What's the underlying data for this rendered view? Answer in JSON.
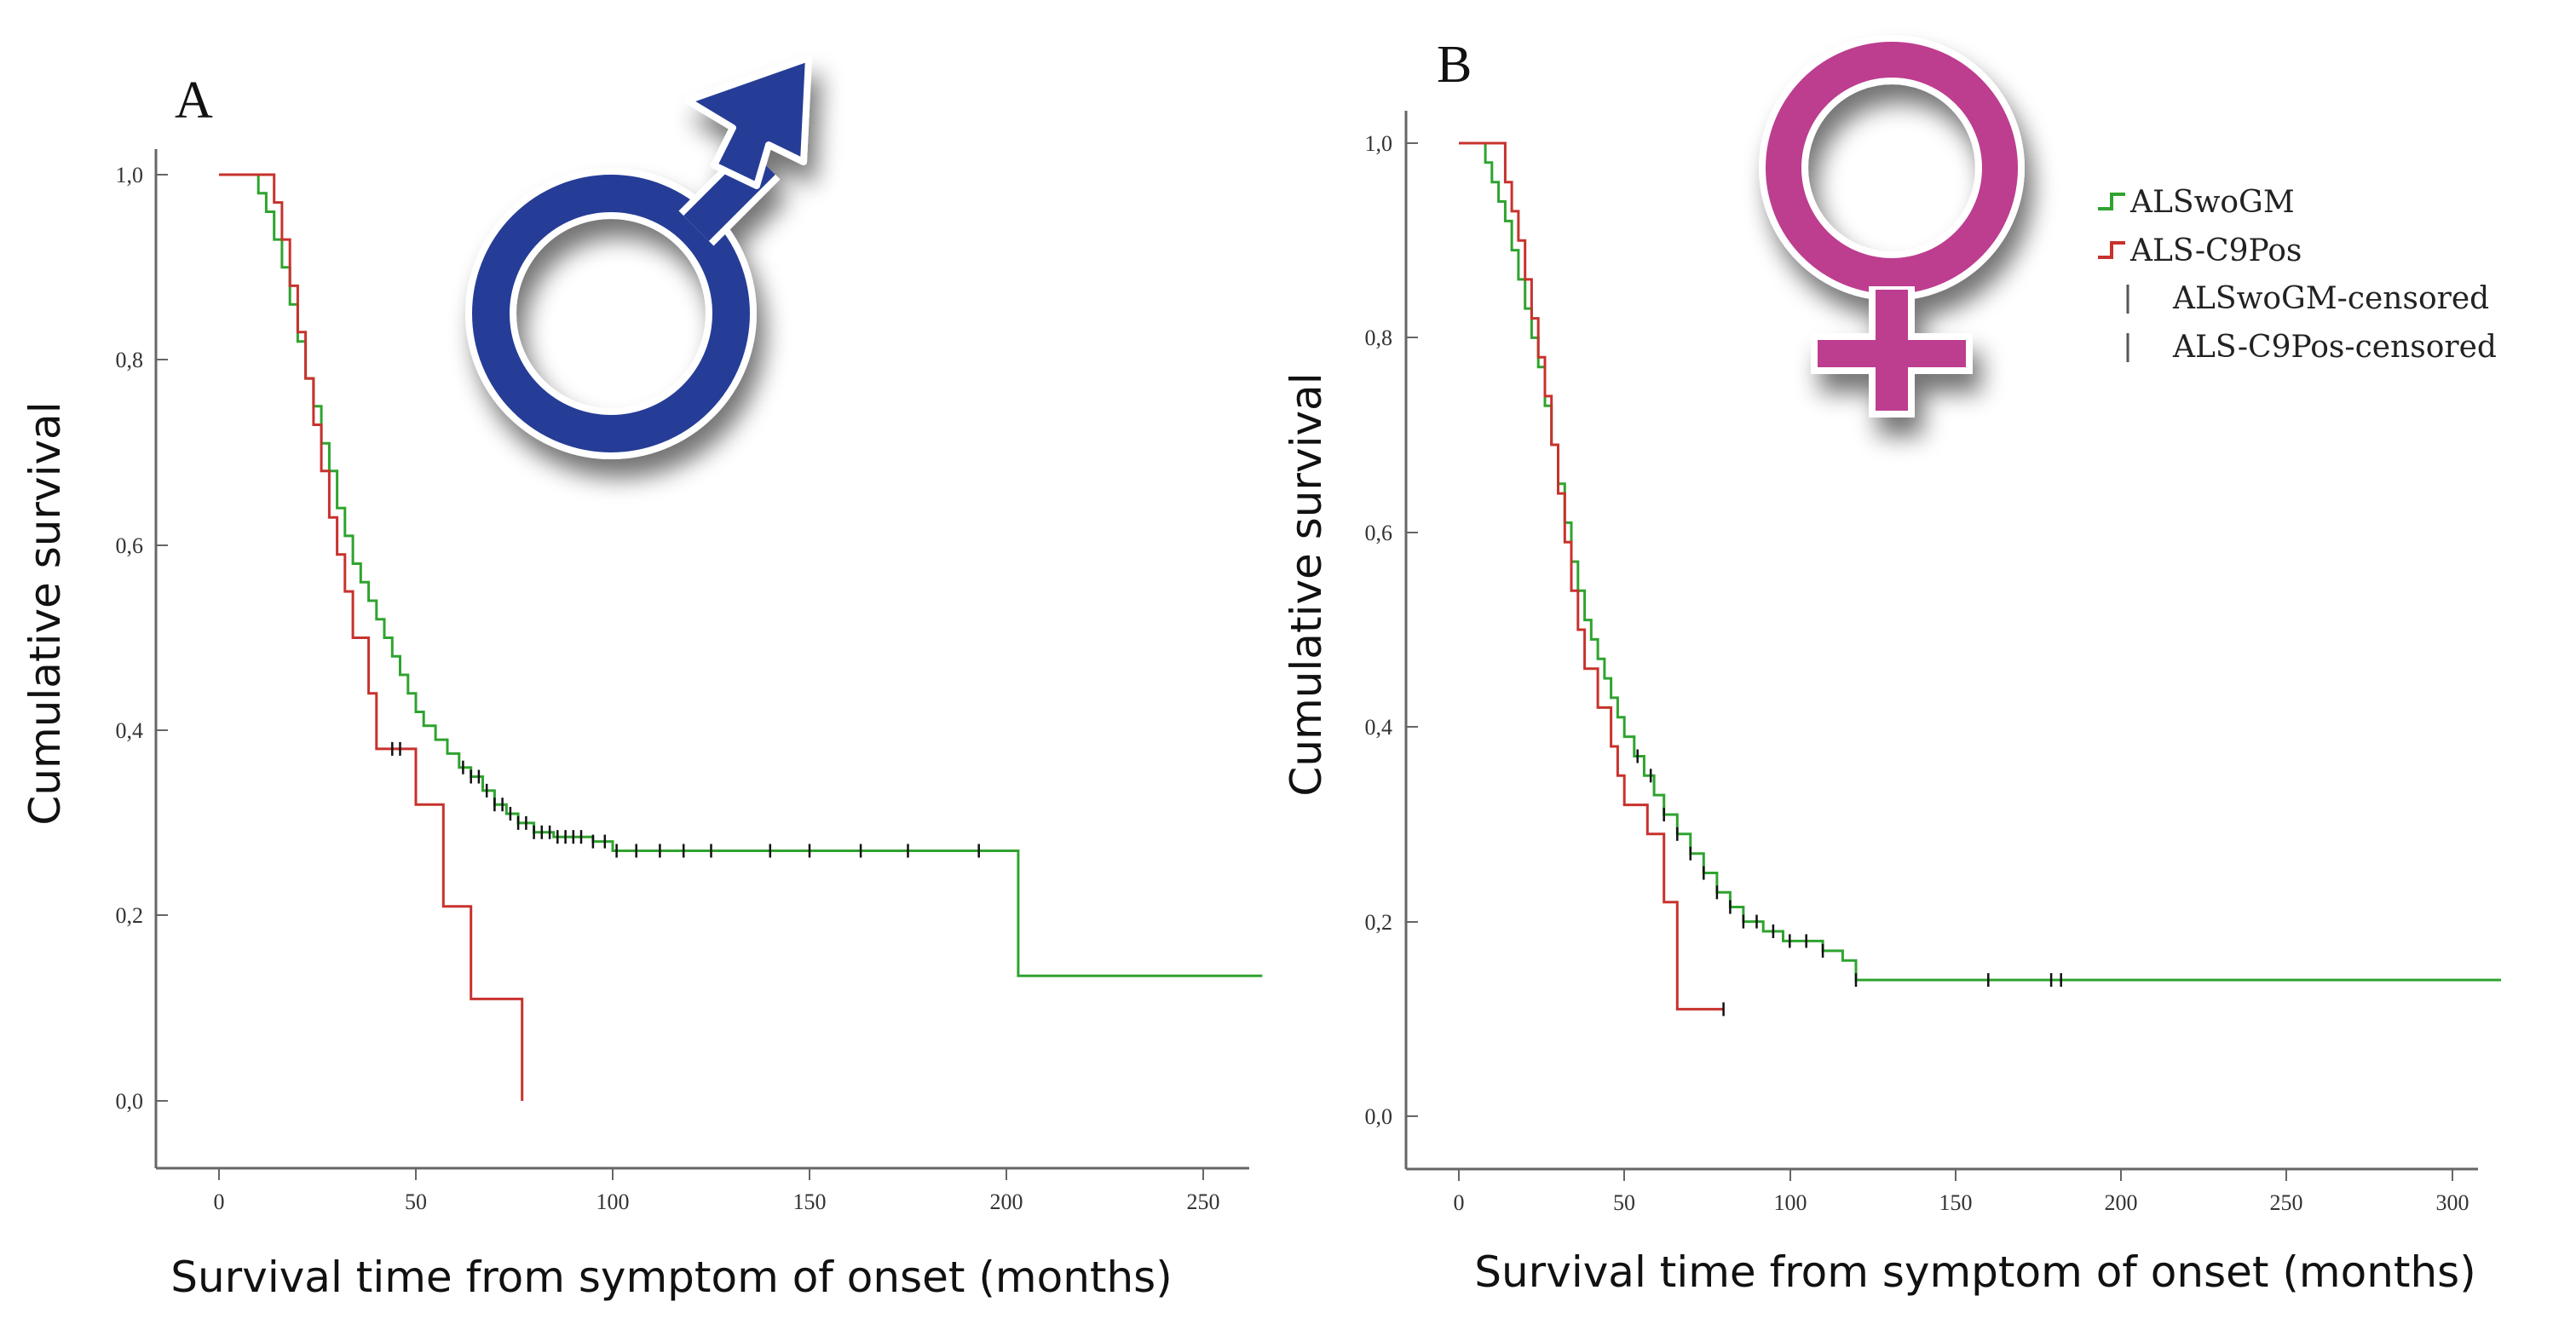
{
  "colors": {
    "alswogm": "#2fa32f",
    "alsc9pos": "#c8322d",
    "censor": "#111111",
    "axis": "#666666",
    "male_symbol": "#263d97",
    "female_symbol": "#bd3c8f"
  },
  "legend": {
    "items": [
      "ALSwoGM",
      "ALS-C9Pos",
      "ALSwoGM-censored",
      "ALS-C9Pos-censored"
    ]
  },
  "symbols": {
    "panel_a": "male-symbol-icon",
    "panel_b": "female-symbol-icon"
  },
  "chart_data": [
    {
      "type": "line",
      "subtype": "kaplan-meier step",
      "panel": "A",
      "xlabel": "Survival time from symptom of onset (months)",
      "ylabel": "Cumulative survival",
      "xlim": [
        -15,
        265
      ],
      "ylim": [
        -0.04,
        1.04
      ],
      "x_ticks": [
        0,
        50,
        100,
        150,
        200,
        250
      ],
      "x_tick_labels": [
        "0",
        "50",
        "100",
        "150",
        "200",
        "250"
      ],
      "y_ticks": [
        0,
        0.2,
        0.4,
        0.6,
        0.8,
        1.0
      ],
      "y_tick_labels": [
        "0,0",
        "0,2",
        "0,4",
        "0,6",
        "0,8",
        "1,0"
      ],
      "series": [
        {
          "name": "ALSwoGM",
          "points": [
            [
              0,
              1.0
            ],
            [
              8,
              1.0
            ],
            [
              10,
              0.98
            ],
            [
              12,
              0.96
            ],
            [
              14,
              0.93
            ],
            [
              16,
              0.9
            ],
            [
              18,
              0.86
            ],
            [
              20,
              0.82
            ],
            [
              22,
              0.78
            ],
            [
              24,
              0.75
            ],
            [
              26,
              0.71
            ],
            [
              28,
              0.68
            ],
            [
              30,
              0.64
            ],
            [
              32,
              0.61
            ],
            [
              34,
              0.58
            ],
            [
              36,
              0.56
            ],
            [
              38,
              0.54
            ],
            [
              40,
              0.52
            ],
            [
              42,
              0.5
            ],
            [
              44,
              0.48
            ],
            [
              46,
              0.46
            ],
            [
              48,
              0.44
            ],
            [
              50,
              0.42
            ],
            [
              52,
              0.405
            ],
            [
              55,
              0.39
            ],
            [
              58,
              0.375
            ],
            [
              61,
              0.36
            ],
            [
              64,
              0.35
            ],
            [
              67,
              0.335
            ],
            [
              70,
              0.32
            ],
            [
              73,
              0.31
            ],
            [
              76,
              0.3
            ],
            [
              80,
              0.29
            ],
            [
              85,
              0.285
            ],
            [
              95,
              0.28
            ],
            [
              100,
              0.27
            ],
            [
              203,
              0.27
            ],
            [
              203,
              0.135
            ],
            [
              265,
              0.135
            ]
          ],
          "censored": [
            62,
            64,
            66,
            68,
            70,
            72,
            74,
            76,
            78,
            80,
            82,
            84,
            86,
            88,
            90,
            92,
            95,
            98,
            101,
            106,
            112,
            118,
            125,
            140,
            150,
            163,
            175,
            193
          ]
        },
        {
          "name": "ALS-C9Pos",
          "points": [
            [
              0,
              1.0
            ],
            [
              12,
              1.0
            ],
            [
              14,
              0.97
            ],
            [
              16,
              0.93
            ],
            [
              18,
              0.88
            ],
            [
              20,
              0.83
            ],
            [
              22,
              0.78
            ],
            [
              24,
              0.73
            ],
            [
              26,
              0.68
            ],
            [
              28,
              0.63
            ],
            [
              30,
              0.59
            ],
            [
              32,
              0.55
            ],
            [
              34,
              0.5
            ],
            [
              38,
              0.44
            ],
            [
              40,
              0.38
            ],
            [
              48,
              0.38
            ],
            [
              50,
              0.32
            ],
            [
              56,
              0.32
            ],
            [
              57,
              0.21
            ],
            [
              63,
              0.21
            ],
            [
              64,
              0.11
            ],
            [
              77,
              0.11
            ],
            [
              77,
              0.0
            ]
          ],
          "censored": [
            44,
            46
          ]
        }
      ]
    },
    {
      "type": "line",
      "subtype": "kaplan-meier step",
      "panel": "B",
      "xlabel": "Survival time from symptom of onset (months)",
      "ylabel": "Cumulative survival",
      "xlim": [
        -15,
        315
      ],
      "ylim": [
        -0.04,
        1.04
      ],
      "x_ticks": [
        0,
        50,
        100,
        150,
        200,
        250,
        300
      ],
      "x_tick_labels": [
        "0",
        "50",
        "100",
        "150",
        "200",
        "250",
        "300"
      ],
      "y_ticks": [
        0,
        0.2,
        0.4,
        0.6,
        0.8,
        1.0
      ],
      "y_tick_labels": [
        "0,0",
        "0,2",
        "0,4",
        "0,6",
        "0,8",
        "1,0"
      ],
      "series": [
        {
          "name": "ALSwoGM",
          "points": [
            [
              0,
              1.0
            ],
            [
              5,
              1.0
            ],
            [
              8,
              0.98
            ],
            [
              10,
              0.96
            ],
            [
              12,
              0.94
            ],
            [
              14,
              0.92
            ],
            [
              16,
              0.89
            ],
            [
              18,
              0.86
            ],
            [
              20,
              0.83
            ],
            [
              22,
              0.8
            ],
            [
              24,
              0.77
            ],
            [
              26,
              0.73
            ],
            [
              28,
              0.69
            ],
            [
              30,
              0.65
            ],
            [
              32,
              0.61
            ],
            [
              34,
              0.57
            ],
            [
              36,
              0.54
            ],
            [
              38,
              0.51
            ],
            [
              40,
              0.49
            ],
            [
              42,
              0.47
            ],
            [
              44,
              0.45
            ],
            [
              46,
              0.43
            ],
            [
              48,
              0.41
            ],
            [
              50,
              0.39
            ],
            [
              53,
              0.37
            ],
            [
              56,
              0.35
            ],
            [
              59,
              0.33
            ],
            [
              62,
              0.31
            ],
            [
              66,
              0.29
            ],
            [
              70,
              0.27
            ],
            [
              74,
              0.25
            ],
            [
              78,
              0.23
            ],
            [
              82,
              0.215
            ],
            [
              86,
              0.2
            ],
            [
              92,
              0.19
            ],
            [
              98,
              0.18
            ],
            [
              110,
              0.17
            ],
            [
              116,
              0.16
            ],
            [
              120,
              0.14
            ],
            [
              315,
              0.14
            ]
          ],
          "censored": [
            54,
            58,
            62,
            66,
            70,
            74,
            78,
            82,
            86,
            90,
            95,
            100,
            105,
            110,
            120,
            160,
            179,
            182
          ]
        },
        {
          "name": "ALS-C9Pos",
          "points": [
            [
              0,
              1.0
            ],
            [
              12,
              1.0
            ],
            [
              14,
              0.96
            ],
            [
              16,
              0.93
            ],
            [
              18,
              0.9
            ],
            [
              20,
              0.86
            ],
            [
              22,
              0.82
            ],
            [
              24,
              0.78
            ],
            [
              26,
              0.74
            ],
            [
              28,
              0.69
            ],
            [
              30,
              0.64
            ],
            [
              32,
              0.59
            ],
            [
              34,
              0.54
            ],
            [
              36,
              0.5
            ],
            [
              38,
              0.46
            ],
            [
              42,
              0.42
            ],
            [
              46,
              0.38
            ],
            [
              48,
              0.35
            ],
            [
              50,
              0.32
            ],
            [
              56,
              0.32
            ],
            [
              57,
              0.29
            ],
            [
              61,
              0.29
            ],
            [
              62,
              0.22
            ],
            [
              65,
              0.22
            ],
            [
              66,
              0.11
            ],
            [
              80,
              0.11
            ]
          ],
          "censored": [
            80
          ]
        }
      ]
    }
  ],
  "panels": [
    {
      "letter": "A",
      "ylabel": "Cumulative survival",
      "xlabel": "Survival time from symptom of onset (months)",
      "x_tick_labels": [
        "0",
        "50",
        "100",
        "150",
        "200",
        "250"
      ],
      "y_tick_labels": [
        "0,0",
        "0,2",
        "0,4",
        "0,6",
        "0,8",
        "1,0"
      ]
    },
    {
      "letter": "B",
      "ylabel": "Cumulative survival",
      "xlabel": "Survival time from symptom of onset (months)",
      "x_tick_labels": [
        "0",
        "50",
        "100",
        "150",
        "200",
        "250",
        "300"
      ],
      "y_tick_labels": [
        "0,0",
        "0,2",
        "0,4",
        "0,6",
        "0,8",
        "1,0"
      ]
    }
  ]
}
